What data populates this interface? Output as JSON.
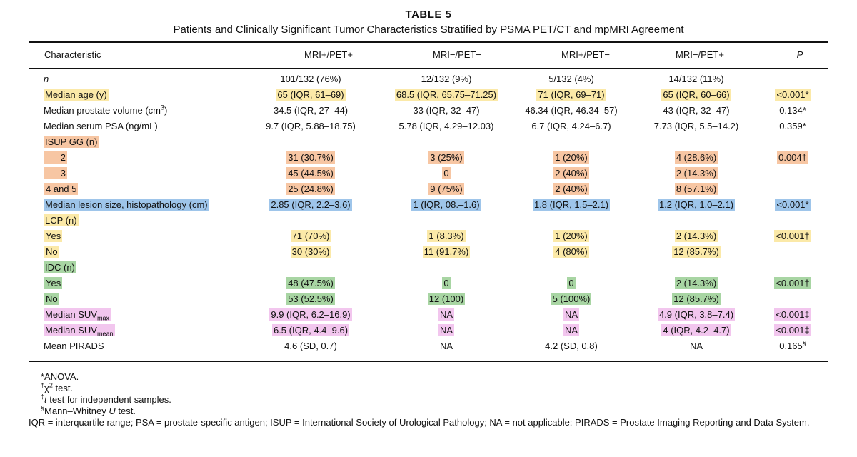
{
  "table": {
    "title": "TABLE 5",
    "subtitle": "Patients and Clinically Significant Tumor Characteristics Stratified by PSMA PET/CT and mpMRI Agreement",
    "headers": [
      "Characteristic",
      "MRI+/PET+",
      "MRI−/PET−",
      "MRI+/PET−",
      "MRI−/PET+",
      "P"
    ],
    "rows": [
      {
        "label": "n",
        "cells": [
          "101/132 (76%)",
          "12/132 (9%)",
          "5/132 (4%)",
          "14/132 (11%)"
        ],
        "p": "",
        "hl": "",
        "cell_hl": [],
        "p_hl": ""
      },
      {
        "label": "Median age (y)",
        "cells": [
          "65 (IQR, 61–69)",
          "68.5 (IQR, 65.75–71.25)",
          "71 (IQR, 69–71)",
          "65 (IQR, 60–66)"
        ],
        "p": "<0.001*",
        "hl": "yellow"
      },
      {
        "label": "Median prostate volume (cm",
        "label_sup": "3",
        "label_after": ")",
        "cells": [
          "34.5 (IQR, 27–44)",
          "33 (IQR, 32–47)",
          "46.34 (IQR, 46.34–57)",
          "43 (IQR, 32–47)"
        ],
        "p": "0.134*",
        "hl": ""
      },
      {
        "label": "Median serum PSA (ng/mL)",
        "cells": [
          "9.7 (IQR, 5.88–18.75)",
          "5.78 (IQR, 4.29–12.03)",
          "6.7 (IQR, 4.24–6.7)",
          "7.73 (IQR, 5.5–14.2)"
        ],
        "p": "0.359*",
        "hl": ""
      },
      {
        "label": "ISUP GG (n)",
        "cells": [
          "",
          "",
          "",
          ""
        ],
        "p": "",
        "hl": "orange"
      },
      {
        "label": "2",
        "cells": [
          "31 (30.7%)",
          "3 (25%)",
          "1 (20%)",
          "4 (28.6%)"
        ],
        "p": "0.004†",
        "hl": "orange"
      },
      {
        "label": "3",
        "cells": [
          "45 (44.5%)",
          "0",
          "2 (40%)",
          "2 (14.3%)"
        ],
        "p": "",
        "hl": "orange"
      },
      {
        "label": "4 and 5",
        "cells": [
          "25 (24.8%)",
          "9 (75%)",
          "2 (40%)",
          "8 (57.1%)"
        ],
        "p": "",
        "hl": "orange"
      },
      {
        "label": "Median lesion size, histopathology (cm)",
        "cells": [
          "2.85 (IQR, 2.2–3.6)",
          "1 (IQR, 08.–1.6)",
          "1.8 (IQR, 1.5–2.1)",
          "1.2 (IQR, 1.0–2.1)"
        ],
        "p": "<0.001*",
        "hl": "blue"
      },
      {
        "label": "LCP (n)",
        "cells": [
          "",
          "",
          "",
          ""
        ],
        "p": "",
        "hl": "yellow"
      },
      {
        "label": "Yes",
        "cells": [
          "71 (70%)",
          "1 (8.3%)",
          "1 (20%)",
          "2 (14.3%)"
        ],
        "p": "<0.001†",
        "hl": "yellow"
      },
      {
        "label": "No",
        "cells": [
          "30 (30%)",
          "11 (91.7%)",
          "4 (80%)",
          "12 (85.7%)"
        ],
        "p": "",
        "hl": "yellow"
      },
      {
        "label": "IDC (n)",
        "cells": [
          "",
          "",
          "",
          ""
        ],
        "p": "",
        "hl": "green"
      },
      {
        "label": "Yes",
        "cells": [
          "48 (47.5%)",
          "0",
          "0",
          "2 (14.3%)"
        ],
        "p": "<0.001†",
        "hl": "green"
      },
      {
        "label": "No",
        "cells": [
          "53 (52.5%)",
          "12 (100)",
          "5 (100%)",
          "12 (85.7%)"
        ],
        "p": "",
        "hl": "green"
      },
      {
        "label": "Median SUV",
        "label_sub": "max",
        "cells": [
          "9.9 (IQR, 6.2–16.9)",
          "NA",
          "NA",
          "4.9 (IQR, 3.8–7.4)"
        ],
        "p": "<0.001‡",
        "hl": "pink"
      },
      {
        "label": "Median SUV",
        "label_sub": "mean",
        "cells": [
          "6.5 (IQR, 4.4–9.6)",
          "NA",
          "NA",
          "4 (IQR, 4.2–4.7)"
        ],
        "p": "<0.001‡",
        "hl": "pink"
      },
      {
        "label": "Mean PIRADS",
        "cells": [
          "4.6 (SD, 0.7)",
          "NA",
          "4.2 (SD, 0.8)",
          "NA"
        ],
        "p": "0.165",
        "p_sup": "§",
        "hl": ""
      }
    ],
    "footnotes": {
      "anova": "*ANOVA.",
      "chi_mark": "†",
      "chi_symbol": "χ",
      "chi_sup": "2",
      "chi_text": " test.",
      "t_mark": "‡",
      "t_symbol": "t",
      "t_text": " test for independent samples.",
      "mw_mark": "§",
      "mw_text": "Mann–Whitney ",
      "mw_u": "U",
      "mw_tail": " test.",
      "abbrev": "IQR = interquartile range; PSA = prostate-specific antigen; ISUP = International Society of Urological Pathology; NA = not applicable; PIRADS = Prostate Imaging Reporting and Data System."
    }
  },
  "colors": {
    "orange": "#f7c6a3",
    "yellow": "#fbe9a8",
    "blue": "#9ec5ea",
    "green": "#a8d5a3",
    "pink": "#f2c6ee"
  }
}
